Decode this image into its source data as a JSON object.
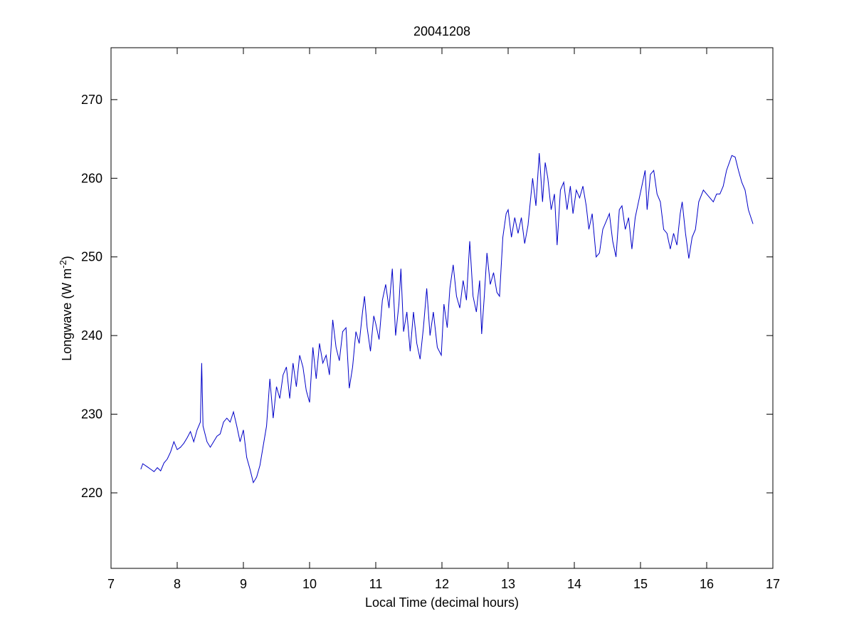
{
  "chart_data": {
    "type": "line",
    "title": "20041208",
    "x_label": "Local Time (decimal hours)",
    "y_label": {
      "text": "Longwave (W m",
      "superscript": "-2",
      "suffix": ")"
    },
    "xlim": [
      7,
      17
    ],
    "xticks": [
      7,
      8,
      9,
      10,
      11,
      12,
      13,
      14,
      15,
      16,
      17
    ],
    "ylim": [
      210.4,
      276.6
    ],
    "yticks": [
      220,
      230,
      240,
      250,
      260,
      270
    ],
    "grid": false,
    "series": [
      {
        "color": "#0000c8",
        "x": [
          7.45,
          7.48,
          7.55,
          7.6,
          7.65,
          7.7,
          7.75,
          7.8,
          7.85,
          7.9,
          7.95,
          8.0,
          8.05,
          8.1,
          8.15,
          8.2,
          8.25,
          8.3,
          8.35,
          8.37,
          8.39,
          8.45,
          8.5,
          8.55,
          8.6,
          8.65,
          8.7,
          8.75,
          8.8,
          8.85,
          8.9,
          8.95,
          9.0,
          9.05,
          9.1,
          9.15,
          9.2,
          9.25,
          9.3,
          9.35,
          9.4,
          9.45,
          9.5,
          9.55,
          9.6,
          9.65,
          9.7,
          9.75,
          9.8,
          9.85,
          9.9,
          9.95,
          10.0,
          10.05,
          10.1,
          10.15,
          10.2,
          10.25,
          10.3,
          10.35,
          10.4,
          10.45,
          10.5,
          10.55,
          10.6,
          10.65,
          10.7,
          10.75,
          10.8,
          10.83,
          10.87,
          10.92,
          10.97,
          11.0,
          11.05,
          11.1,
          11.15,
          11.2,
          11.25,
          11.3,
          11.35,
          11.38,
          11.42,
          11.47,
          11.52,
          11.57,
          11.62,
          11.67,
          11.72,
          11.77,
          11.82,
          11.87,
          11.93,
          11.99,
          12.03,
          12.08,
          12.12,
          12.17,
          12.22,
          12.27,
          12.32,
          12.37,
          12.42,
          12.47,
          12.52,
          12.57,
          12.6,
          12.64,
          12.68,
          12.73,
          12.78,
          12.83,
          12.87,
          12.92,
          12.97,
          13.0,
          13.05,
          13.1,
          13.15,
          13.2,
          13.25,
          13.3,
          13.37,
          13.42,
          13.47,
          13.52,
          13.56,
          13.6,
          13.65,
          13.7,
          13.74,
          13.79,
          13.84,
          13.89,
          13.94,
          13.98,
          14.03,
          14.08,
          14.13,
          14.18,
          14.22,
          14.27,
          14.33,
          14.38,
          14.43,
          14.48,
          14.53,
          14.58,
          14.63,
          14.68,
          14.72,
          14.77,
          14.82,
          14.87,
          14.92,
          14.97,
          15.02,
          15.07,
          15.1,
          15.15,
          15.2,
          15.25,
          15.3,
          15.35,
          15.4,
          15.45,
          15.5,
          15.55,
          15.6,
          15.63,
          15.68,
          15.73,
          15.78,
          15.83,
          15.88,
          15.95,
          16.0,
          16.05,
          16.1,
          16.15,
          16.2,
          16.25,
          16.3,
          16.38,
          16.43,
          16.48,
          16.53,
          16.58,
          16.63,
          16.7
        ],
        "values": [
          223.0,
          223.7,
          223.3,
          223.0,
          222.7,
          223.2,
          222.8,
          223.8,
          224.3,
          225.2,
          226.5,
          225.5,
          225.8,
          226.3,
          227.0,
          227.8,
          226.5,
          228.0,
          229.0,
          236.5,
          228.5,
          226.5,
          225.8,
          226.5,
          227.2,
          227.5,
          229.0,
          229.5,
          229.0,
          230.3,
          228.5,
          226.5,
          228.0,
          224.5,
          223.0,
          221.3,
          222.0,
          223.5,
          226.0,
          228.5,
          234.5,
          229.5,
          233.5,
          232.0,
          235.0,
          236.0,
          232.0,
          236.5,
          233.5,
          237.5,
          236.0,
          233.0,
          231.5,
          238.5,
          234.5,
          239.0,
          236.5,
          237.5,
          235.0,
          242.0,
          238.5,
          236.8,
          240.5,
          241.0,
          233.3,
          236.0,
          240.5,
          239.0,
          243.0,
          245.0,
          241.0,
          238.0,
          242.5,
          241.5,
          239.5,
          244.5,
          246.5,
          243.5,
          248.5,
          240.0,
          244.0,
          248.5,
          240.5,
          243.0,
          238.0,
          243.0,
          239.0,
          237.0,
          241.0,
          246.0,
          240.0,
          243.0,
          238.5,
          237.5,
          244.0,
          241.0,
          246.0,
          249.0,
          245.0,
          243.5,
          247.0,
          244.5,
          252.0,
          245.0,
          243.0,
          247.0,
          240.2,
          245.0,
          250.5,
          246.5,
          248.0,
          245.5,
          245.0,
          252.5,
          255.5,
          256.0,
          252.5,
          255.0,
          253.0,
          255.0,
          251.7,
          254.0,
          260.0,
          256.5,
          263.2,
          257.0,
          262.0,
          260.0,
          256.0,
          258.0,
          251.5,
          258.5,
          259.5,
          256.0,
          259.0,
          255.5,
          258.5,
          257.5,
          259.0,
          256.5,
          253.5,
          255.5,
          250.0,
          250.5,
          253.5,
          254.5,
          255.5,
          252.0,
          250.0,
          256.0,
          256.5,
          253.5,
          255.0,
          251.0,
          255.0,
          257.0,
          259.0,
          261.0,
          256.0,
          260.5,
          261.0,
          258.0,
          257.0,
          253.5,
          253.0,
          251.0,
          253.0,
          251.5,
          255.5,
          257.0,
          253.0,
          249.8,
          252.5,
          253.5,
          257.0,
          258.5,
          258.0,
          257.5,
          257.0,
          258.0,
          258.0,
          259.0,
          261.0,
          262.9,
          262.7,
          261.0,
          259.5,
          258.5,
          256.0,
          254.2
        ]
      }
    ]
  }
}
